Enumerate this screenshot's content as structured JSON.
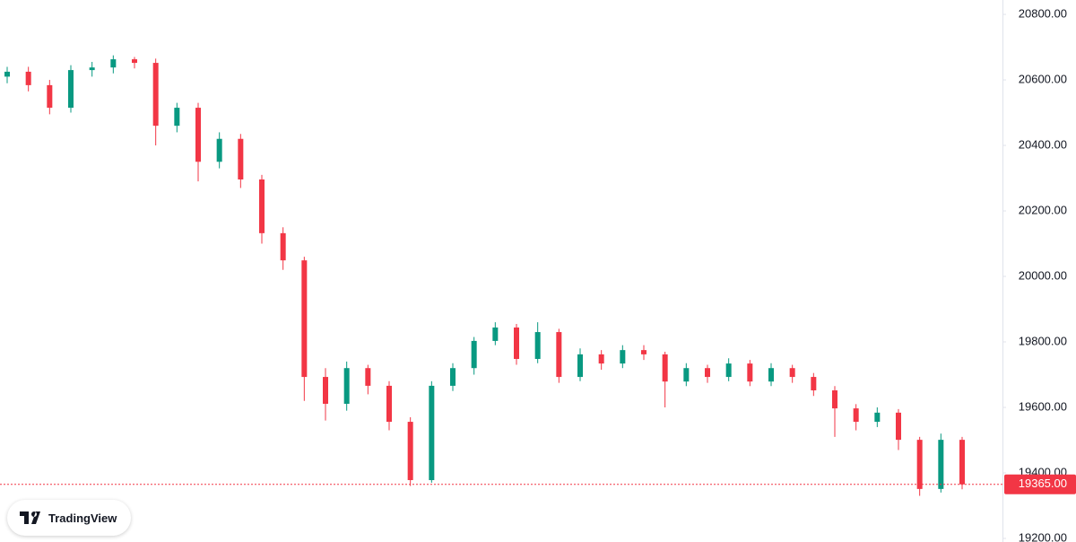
{
  "chart_data": {
    "type": "candlestick",
    "open": [
      20610,
      20625,
      20584,
      20515,
      20630,
      20638,
      20663,
      20652,
      20460,
      20515,
      20350,
      20420,
      20296,
      20132,
      20049,
      19693,
      19611,
      19720,
      19666,
      19556,
      19378,
      19666,
      19720,
      19803,
      19844,
      19748,
      19830,
      19693,
      19762,
      19734,
      19775,
      19762,
      19679,
      19720,
      19693,
      19734,
      19679,
      19720,
      19693,
      19652,
      19597,
      19556,
      19584,
      19501,
      19351,
      19501
    ],
    "high": [
      20640,
      20640,
      20600,
      20645,
      20655,
      20675,
      20670,
      20665,
      20530,
      20530,
      20440,
      20435,
      20310,
      20150,
      20060,
      19720,
      19740,
      19730,
      19680,
      19570,
      19680,
      19735,
      19815,
      19860,
      19855,
      19860,
      19840,
      19780,
      19775,
      19790,
      19790,
      19770,
      19735,
      19730,
      19750,
      19745,
      19735,
      19730,
      19705,
      19665,
      19610,
      19600,
      19595,
      19510,
      19520,
      19510
    ],
    "low": [
      20590,
      20565,
      20495,
      20500,
      20610,
      20620,
      20635,
      20400,
      20440,
      20290,
      20330,
      20270,
      20100,
      20020,
      19620,
      19560,
      19590,
      19640,
      19530,
      19360,
      19370,
      19650,
      19700,
      19790,
      19730,
      19735,
      19675,
      19680,
      19715,
      19720,
      19745,
      19600,
      19665,
      19675,
      19680,
      19665,
      19665,
      19675,
      19635,
      19510,
      19530,
      19540,
      19470,
      19330,
      19340,
      19350
    ],
    "close": [
      20625,
      20584,
      20515,
      20630,
      20638,
      20663,
      20652,
      20460,
      20515,
      20350,
      20420,
      20296,
      20132,
      20049,
      19693,
      19611,
      19720,
      19666,
      19556,
      19378,
      19666,
      19720,
      19803,
      19844,
      19748,
      19830,
      19693,
      19762,
      19734,
      19775,
      19762,
      19679,
      19720,
      19693,
      19734,
      19679,
      19720,
      19693,
      19652,
      19597,
      19556,
      19584,
      19501,
      19351,
      19501,
      19365
    ],
    "up_color": "#089981",
    "down_color": "#f23645",
    "ylim": [
      19189,
      20844
    ],
    "yticks": [
      {
        "value": 19200,
        "label": "19200.00"
      },
      {
        "value": 19400,
        "label": "19400.00"
      },
      {
        "value": 19600,
        "label": "19600.00"
      },
      {
        "value": 19800,
        "label": "19800.00"
      },
      {
        "value": 20000,
        "label": "20000.00"
      },
      {
        "value": 20200,
        "label": "20200.00"
      },
      {
        "value": 20400,
        "label": "20400.00"
      },
      {
        "value": 20600,
        "label": "20600.00"
      },
      {
        "value": 20800,
        "label": "20800.00"
      }
    ],
    "last_price": 19365,
    "last_price_label": "19365.00",
    "watermark": "TradingView"
  }
}
